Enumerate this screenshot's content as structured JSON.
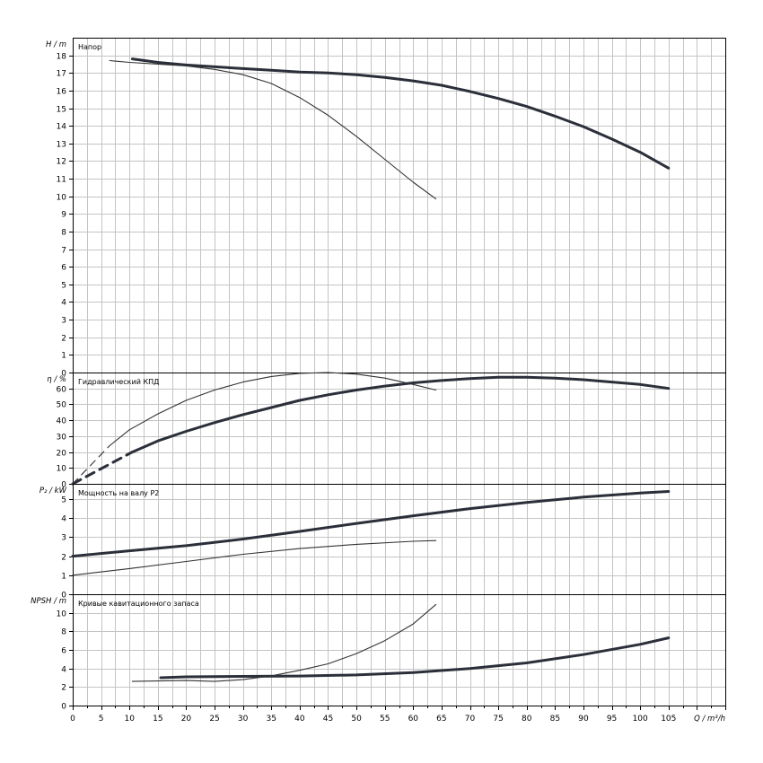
{
  "chart_data": [
    {
      "type": "line",
      "title": "Напор",
      "ylabel": "H / m",
      "xlabel": "Q / m³/h",
      "xlim": [
        0,
        115
      ],
      "ylim": [
        0,
        19
      ],
      "grid": true,
      "x_ticks": [
        0,
        5,
        10,
        15,
        20,
        25,
        30,
        35,
        40,
        45,
        50,
        55,
        60,
        65,
        70,
        75,
        80,
        85,
        90,
        95,
        100,
        105
      ],
      "y_ticks": [
        0,
        1,
        2,
        3,
        4,
        5,
        6,
        7,
        8,
        9,
        10,
        11,
        12,
        13,
        14,
        15,
        16,
        17,
        18
      ],
      "series": [
        {
          "style": "thick",
          "points": [
            [
              10.5,
              17.8
            ],
            [
              15,
              17.6
            ],
            [
              20,
              17.45
            ],
            [
              25,
              17.35
            ],
            [
              30,
              17.25
            ],
            [
              35,
              17.15
            ],
            [
              40,
              17.05
            ],
            [
              45,
              17.0
            ],
            [
              50,
              16.9
            ],
            [
              55,
              16.75
            ],
            [
              60,
              16.55
            ],
            [
              65,
              16.3
            ],
            [
              70,
              15.95
            ],
            [
              75,
              15.55
            ],
            [
              80,
              15.1
            ],
            [
              85,
              14.55
            ],
            [
              90,
              13.95
            ],
            [
              95,
              13.25
            ],
            [
              100,
              12.5
            ],
            [
              105,
              11.6
            ]
          ]
        },
        {
          "style": "thin",
          "points": [
            [
              6.5,
              17.7
            ],
            [
              10,
              17.6
            ],
            [
              15,
              17.5
            ],
            [
              20,
              17.4
            ],
            [
              25,
              17.2
            ],
            [
              30,
              16.9
            ],
            [
              35,
              16.4
            ],
            [
              40,
              15.6
            ],
            [
              45,
              14.6
            ],
            [
              50,
              13.4
            ],
            [
              55,
              12.1
            ],
            [
              60,
              10.8
            ],
            [
              64,
              9.85
            ]
          ]
        }
      ]
    },
    {
      "type": "line",
      "title": "Гидравлический КПД",
      "ylabel": "η / %",
      "xlim": [
        0,
        115
      ],
      "ylim": [
        0,
        70
      ],
      "grid": true,
      "y_ticks": [
        0,
        10,
        20,
        30,
        40,
        50,
        60
      ],
      "series": [
        {
          "style": "thick",
          "points": [
            [
              10.5,
              20
            ],
            [
              15,
              27
            ],
            [
              20,
              33
            ],
            [
              25,
              38.5
            ],
            [
              30,
              43.5
            ],
            [
              35,
              48
            ],
            [
              40,
              52.5
            ],
            [
              45,
              56
            ],
            [
              50,
              59
            ],
            [
              55,
              61.5
            ],
            [
              60,
              63.5
            ],
            [
              65,
              65
            ],
            [
              70,
              66.2
            ],
            [
              75,
              67
            ],
            [
              80,
              67
            ],
            [
              85,
              66.5
            ],
            [
              90,
              65.5
            ],
            [
              95,
              64
            ],
            [
              100,
              62.5
            ],
            [
              105,
              60
            ]
          ]
        },
        {
          "style": "thick-dashed",
          "points": [
            [
              0,
              0
            ],
            [
              10.5,
              20
            ]
          ]
        },
        {
          "style": "thin",
          "points": [
            [
              6.5,
              24
            ],
            [
              10,
              34
            ],
            [
              15,
              44
            ],
            [
              20,
              52.5
            ],
            [
              25,
              59
            ],
            [
              30,
              64
            ],
            [
              35,
              67.5
            ],
            [
              40,
              69.5
            ],
            [
              45,
              70
            ],
            [
              50,
              69
            ],
            [
              55,
              66.5
            ],
            [
              60,
              62.5
            ],
            [
              64,
              59
            ]
          ]
        },
        {
          "style": "thin-dashed",
          "points": [
            [
              0,
              0
            ],
            [
              6.5,
              24
            ]
          ]
        }
      ]
    },
    {
      "type": "line",
      "title": "Мощность на валу P2",
      "ylabel": "P₂ / kW",
      "xlim": [
        0,
        115
      ],
      "ylim": [
        0,
        5.8
      ],
      "grid": true,
      "y_ticks": [
        0,
        1,
        2,
        3,
        4,
        5
      ],
      "series": [
        {
          "style": "thick",
          "points": [
            [
              0,
              2.0
            ],
            [
              10,
              2.28
            ],
            [
              20,
              2.55
            ],
            [
              30,
              2.9
            ],
            [
              40,
              3.3
            ],
            [
              50,
              3.72
            ],
            [
              60,
              4.12
            ],
            [
              70,
              4.5
            ],
            [
              80,
              4.82
            ],
            [
              90,
              5.1
            ],
            [
              100,
              5.32
            ],
            [
              105,
              5.4
            ]
          ]
        },
        {
          "style": "thin",
          "points": [
            [
              0,
              1.0
            ],
            [
              10,
              1.35
            ],
            [
              20,
              1.72
            ],
            [
              30,
              2.1
            ],
            [
              40,
              2.4
            ],
            [
              50,
              2.62
            ],
            [
              60,
              2.78
            ],
            [
              64,
              2.82
            ]
          ]
        }
      ]
    },
    {
      "type": "line",
      "title": "Кривые кавитационного запаса",
      "ylabel": "NPSH / m",
      "xlabel": "Q / m³/h",
      "xlim": [
        0,
        115
      ],
      "ylim": [
        0,
        12
      ],
      "grid": true,
      "y_ticks": [
        0,
        2,
        4,
        6,
        8,
        10
      ],
      "series": [
        {
          "style": "thick",
          "points": [
            [
              15.5,
              3.0
            ],
            [
              20,
              3.1
            ],
            [
              30,
              3.15
            ],
            [
              40,
              3.18
            ],
            [
              50,
              3.3
            ],
            [
              60,
              3.55
            ],
            [
              70,
              4.0
            ],
            [
              80,
              4.6
            ],
            [
              90,
              5.5
            ],
            [
              100,
              6.6
            ],
            [
              105,
              7.3
            ]
          ]
        },
        {
          "style": "thin",
          "points": [
            [
              10.5,
              2.6
            ],
            [
              20,
              2.7
            ],
            [
              25,
              2.6
            ],
            [
              30,
              2.8
            ],
            [
              35,
              3.2
            ],
            [
              40,
              3.8
            ],
            [
              45,
              4.5
            ],
            [
              50,
              5.6
            ],
            [
              55,
              7.0
            ],
            [
              60,
              8.8
            ],
            [
              64,
              10.9
            ]
          ]
        }
      ]
    }
  ]
}
